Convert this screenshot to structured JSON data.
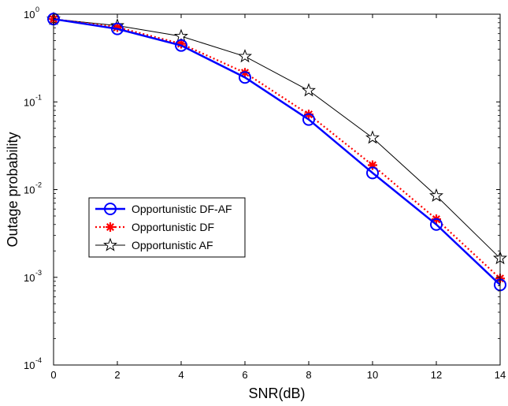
{
  "chart_data": {
    "type": "line",
    "xlabel": "SNR(dB)",
    "ylabel": "Outage probability",
    "xlim": [
      0,
      14
    ],
    "ylim": [
      0.0001,
      1
    ],
    "yscale": "log",
    "grid": false,
    "legend_position": "middle-left",
    "x_ticks": [
      "0",
      "2",
      "4",
      "6",
      "8",
      "10",
      "12",
      "14"
    ],
    "y_ticks": [
      {
        "base": "10",
        "exp": "0",
        "value": 1
      },
      {
        "base": "10",
        "exp": "-1",
        "value": 0.1
      },
      {
        "base": "10",
        "exp": "-2",
        "value": 0.01
      },
      {
        "base": "10",
        "exp": "-3",
        "value": 0.001
      },
      {
        "base": "10",
        "exp": "-4",
        "value": 0.0001
      }
    ],
    "x": [
      0,
      2,
      4,
      6,
      8,
      10,
      12,
      14
    ],
    "series": [
      {
        "name": "Opportunistic DF-AF",
        "color": "#0000ff",
        "line_style": "solid",
        "marker": "circle",
        "values": [
          0.88,
          0.68,
          0.44,
          0.19,
          0.063,
          0.0155,
          0.004,
          0.00082
        ]
      },
      {
        "name": "Opportunistic DF",
        "color": "#ff0000",
        "line_style": "dotted",
        "marker": "asterisk",
        "values": [
          0.88,
          0.71,
          0.46,
          0.215,
          0.072,
          0.019,
          0.0046,
          0.00097
        ]
      },
      {
        "name": "Opportunistic AF",
        "color": "#000000",
        "line_style": "solid",
        "marker": "star",
        "values": [
          0.88,
          0.74,
          0.56,
          0.33,
          0.135,
          0.039,
          0.0085,
          0.00165
        ]
      }
    ]
  }
}
